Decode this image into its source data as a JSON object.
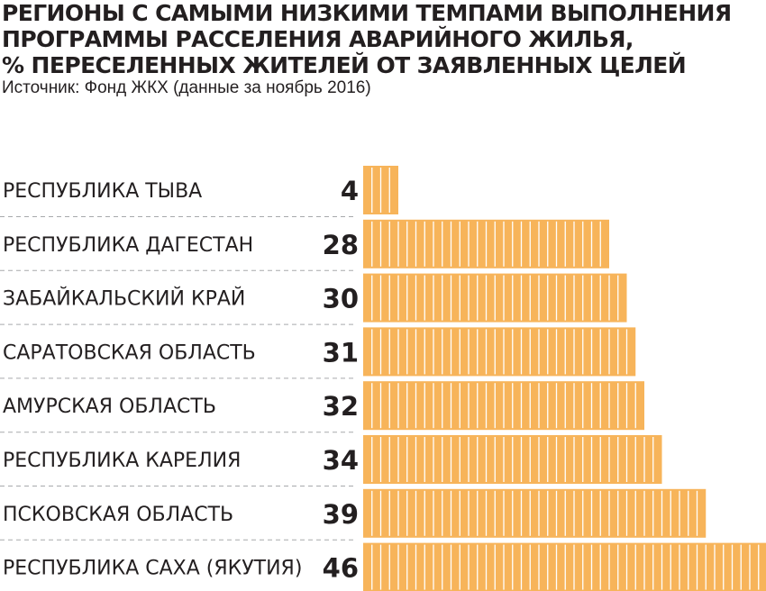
{
  "title_lines": [
    "РЕГИОНЫ С САМЫМИ НИЗКИМИ ТЕМПАМИ ВЫПОЛНЕНИЯ",
    "ПРОГРАММЫ РАССЕЛЕНИЯ АВАРИЙНОГО ЖИЛЬЯ,",
    "% ПЕРЕСЕЛЕННЫХ ЖИТЕЛЕЙ ОТ ЗАЯВЛЕННЫХ ЦЕЛЕЙ"
  ],
  "source": "Источник: Фонд ЖКХ (данные за ноябрь 2016)",
  "colors": {
    "bar_fill": "#F7B45A",
    "segment_divider": "#FFFFFF",
    "text": "#231F20",
    "separator": "#A7A9AC"
  },
  "chart_data": {
    "type": "bar",
    "orientation": "horizontal",
    "categories": [
      "РЕСПУБЛИКА ТЫВА",
      "РЕСПУБЛИКА ДАГЕСТАН",
      "ЗАБАЙКАЛЬСКИЙ КРАЙ",
      "САРАТОВСКАЯ ОБЛАСТЬ",
      "АМУРСКАЯ ОБЛАСТЬ",
      "РЕСПУБЛИКА КАРЕЛИЯ",
      "ПСКОВСКАЯ ОБЛАСТЬ",
      "РЕСПУБЛИКА САХА (ЯКУТИЯ)"
    ],
    "values": [
      4,
      28,
      30,
      31,
      32,
      34,
      39,
      46
    ],
    "unit_per_segment": 1,
    "title": "РЕГИОНЫ С САМЫМИ НИЗКИМИ ТЕМПАМИ ВЫПОЛНЕНИЯ ПРОГРАММЫ РАССЕЛЕНИЯ АВАРИЙНОГО ЖИЛЬЯ, % ПЕРЕСЕЛЕННЫХ ЖИТЕЛЕЙ ОТ ЗАЯВЛЕННЫХ ЦЕЛЕЙ",
    "xlabel": "",
    "ylabel": "",
    "xlim": [
      0,
      46
    ],
    "grid": false,
    "legend": "none"
  }
}
